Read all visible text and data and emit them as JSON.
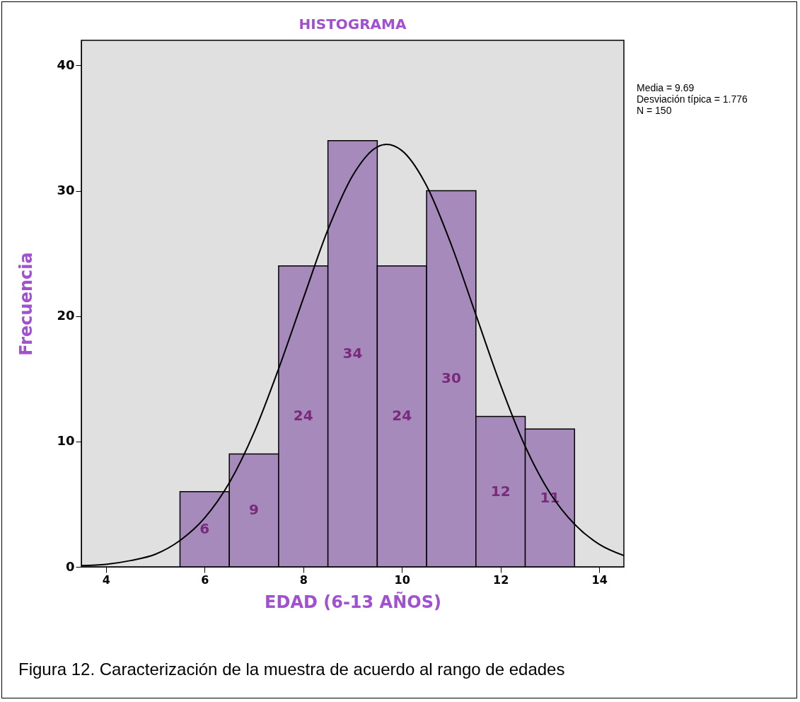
{
  "chart_data": {
    "type": "histogram",
    "title": "HISTOGRAMA",
    "xlabel": "EDAD (6-13 AÑOS)",
    "ylabel": "Frecuencia",
    "bins": [
      5.5,
      6.5,
      7.5,
      8.5,
      9.5,
      10.5,
      11.5,
      12.5,
      13.5
    ],
    "values": [
      6,
      9,
      24,
      34,
      24,
      30,
      12,
      11
    ],
    "color": "#a58abb",
    "value_labels": [
      "6",
      "9",
      "24",
      "34",
      "24",
      "30",
      "12",
      "11"
    ],
    "series": [
      {
        "type": "line",
        "color": "#000000",
        "x": [
          3.5,
          4,
          4.5,
          5,
          5.5,
          6,
          6.5,
          7,
          7.5,
          8,
          8.5,
          9,
          9.5,
          9.69,
          10,
          10.5,
          11,
          11.5,
          12,
          12.5,
          13,
          13.5,
          14,
          14.5
        ],
        "values": [
          0.1,
          0.2,
          0.5,
          1.0,
          2.1,
          3.9,
          6.7,
          10.7,
          15.8,
          21.4,
          26.9,
          31.2,
          33.5,
          33.7,
          33.2,
          30.4,
          25.7,
          20.1,
          14.5,
          9.6,
          5.9,
          3.4,
          1.8,
          0.9
        ]
      }
    ],
    "xlim": [
      3.5,
      14.5
    ],
    "xticks": [
      4,
      6,
      8,
      10,
      12,
      14
    ],
    "ylim": [
      0,
      42
    ],
    "yticks": [
      0,
      10,
      20,
      30,
      40
    ],
    "grid": false,
    "annotations": [
      "Media = 9.69",
      "Desviación típica = 1.776",
      "N = 150",
      "Figura 12. Caracterización de la muestra de acuerdo al rango de edades"
    ]
  }
}
